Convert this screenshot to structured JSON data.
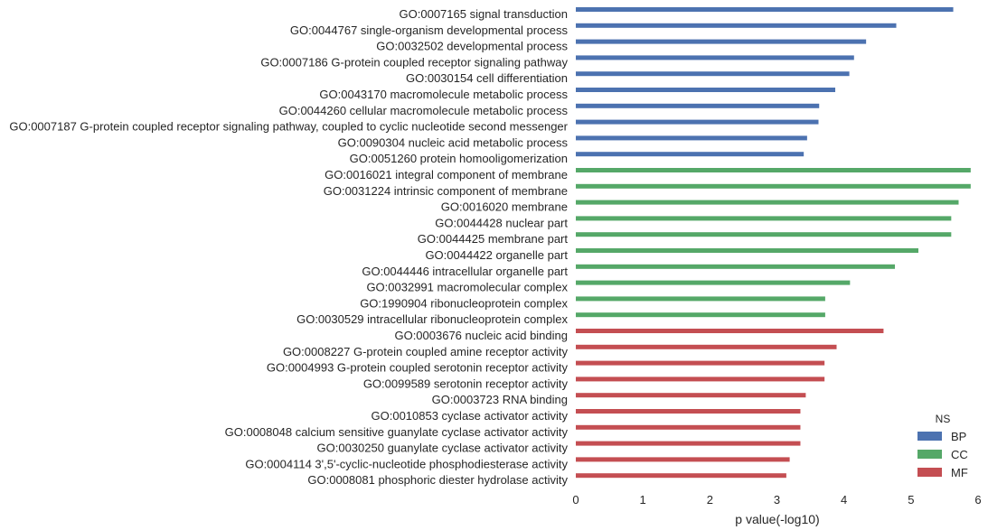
{
  "chart_data": {
    "type": "bar",
    "orientation": "horizontal",
    "xlabel": "p value(-log10)",
    "xlim": [
      0,
      6
    ],
    "xticks": [
      "0",
      "1",
      "2",
      "3",
      "4",
      "5",
      "6"
    ],
    "grid": false,
    "legend": {
      "title": "NS",
      "placement": "bottom-right",
      "entries": [
        {
          "name": "BP",
          "color": "#4c72b0"
        },
        {
          "name": "CC",
          "color": "#55a868"
        },
        {
          "name": "MF",
          "color": "#c44e52"
        }
      ]
    },
    "categories": [
      {
        "label": "GO:0007165 signal transduction",
        "group": "BP",
        "value": 5.63
      },
      {
        "label": "GO:0044767 single-organism developmental process",
        "group": "BP",
        "value": 4.78
      },
      {
        "label": "GO:0032502 developmental process",
        "group": "BP",
        "value": 4.33
      },
      {
        "label": "GO:0007186 G-protein coupled receptor signaling pathway",
        "group": "BP",
        "value": 4.15
      },
      {
        "label": "GO:0030154 cell differentiation",
        "group": "BP",
        "value": 4.08
      },
      {
        "label": "GO:0043170 macromolecule metabolic process",
        "group": "BP",
        "value": 3.87
      },
      {
        "label": "GO:0044260 cellular macromolecule metabolic process",
        "group": "BP",
        "value": 3.63
      },
      {
        "label": "GO:0007187 G-protein coupled receptor signaling pathway, coupled to cyclic nucleotide second messenger",
        "group": "BP",
        "value": 3.62
      },
      {
        "label": "GO:0090304 nucleic acid metabolic process",
        "group": "BP",
        "value": 3.45
      },
      {
        "label": "GO:0051260 protein homooligomerization",
        "group": "BP",
        "value": 3.4
      },
      {
        "label": "GO:0016021 integral component of membrane",
        "group": "CC",
        "value": 5.89
      },
      {
        "label": "GO:0031224 intrinsic component of membrane",
        "group": "CC",
        "value": 5.89
      },
      {
        "label": "GO:0016020 membrane",
        "group": "CC",
        "value": 5.71
      },
      {
        "label": "GO:0044428 nuclear part",
        "group": "CC",
        "value": 5.6
      },
      {
        "label": "GO:0044425 membrane part",
        "group": "CC",
        "value": 5.6
      },
      {
        "label": "GO:0044422 organelle part",
        "group": "CC",
        "value": 5.11
      },
      {
        "label": "GO:0044446 intracellular organelle part",
        "group": "CC",
        "value": 4.76
      },
      {
        "label": "GO:0032991 macromolecular complex",
        "group": "CC",
        "value": 4.09
      },
      {
        "label": "GO:1990904 ribonucleoprotein complex",
        "group": "CC",
        "value": 3.72
      },
      {
        "label": "GO:0030529 intracellular ribonucleoprotein complex",
        "group": "CC",
        "value": 3.72
      },
      {
        "label": "GO:0003676 nucleic acid binding",
        "group": "MF",
        "value": 4.59
      },
      {
        "label": "GO:0008227 G-protein coupled amine receptor activity",
        "group": "MF",
        "value": 3.89
      },
      {
        "label": "GO:0004993 G-protein coupled serotonin receptor activity",
        "group": "MF",
        "value": 3.71
      },
      {
        "label": "GO:0099589 serotonin receptor activity",
        "group": "MF",
        "value": 3.71
      },
      {
        "label": "GO:0003723 RNA binding",
        "group": "MF",
        "value": 3.43
      },
      {
        "label": "GO:0010853 cyclase activator activity",
        "group": "MF",
        "value": 3.35
      },
      {
        "label": "GO:0008048 calcium sensitive guanylate cyclase activator activity",
        "group": "MF",
        "value": 3.35
      },
      {
        "label": "GO:0030250 guanylate cyclase activator activity",
        "group": "MF",
        "value": 3.35
      },
      {
        "label": "GO:0004114 3',5'-cyclic-nucleotide phosphodiesterase activity",
        "group": "MF",
        "value": 3.19
      },
      {
        "label": "GO:0008081 phosphoric diester hydrolase activity",
        "group": "MF",
        "value": 3.14
      }
    ]
  }
}
